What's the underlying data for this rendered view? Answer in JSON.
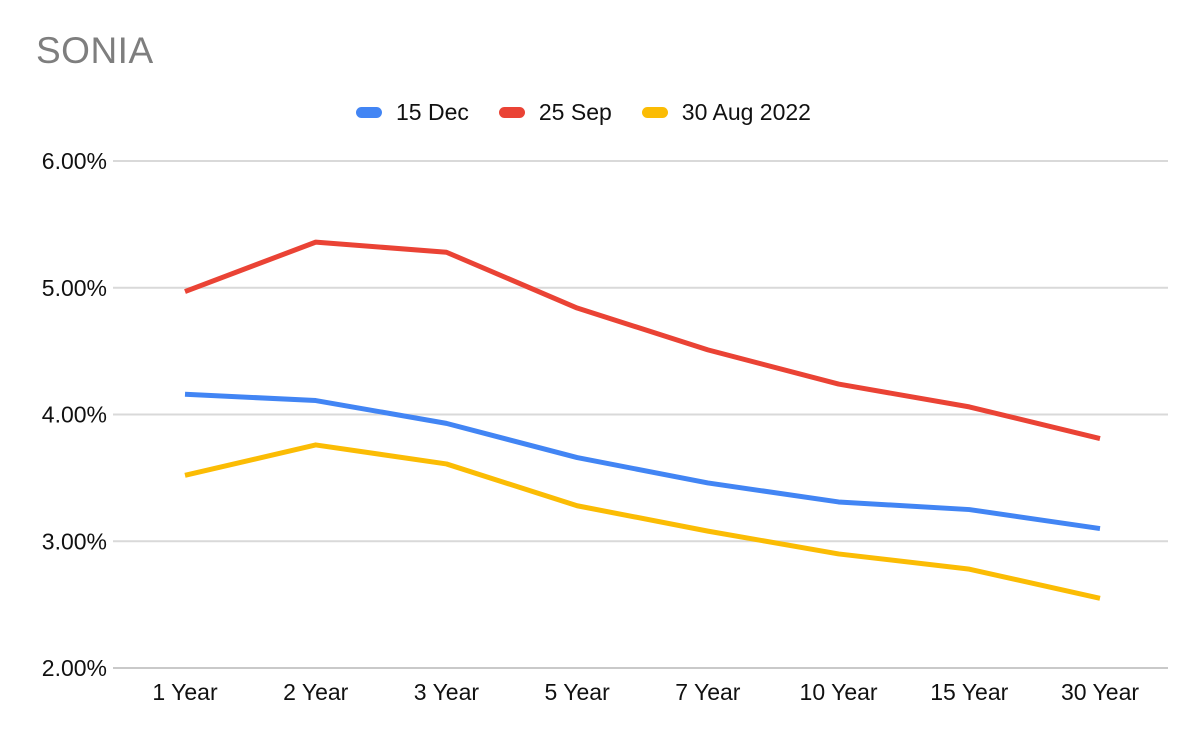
{
  "title": "SONIA",
  "colors": {
    "background": "#ffffff",
    "title_text": "#7e7e7e",
    "axis_text": "#111111",
    "gridline": "#d9d9d9",
    "baseline": "#c9c9c9",
    "series_blue": "#4285F4",
    "series_red": "#EA4335",
    "series_yellow": "#FBBC04"
  },
  "chart_data": {
    "type": "line",
    "title": "SONIA",
    "categories": [
      "1 Year",
      "2 Year",
      "3 Year",
      "5 Year",
      "7 Year",
      "10 Year",
      "15 Year",
      "30 Year"
    ],
    "series": [
      {
        "name": "15 Dec",
        "color": "#4285F4",
        "values": [
          4.16,
          4.11,
          3.93,
          3.66,
          3.46,
          3.31,
          3.25,
          3.1
        ]
      },
      {
        "name": "25 Sep",
        "color": "#EA4335",
        "values": [
          4.97,
          5.36,
          5.28,
          4.84,
          4.51,
          4.24,
          4.06,
          3.81
        ]
      },
      {
        "name": "30 Aug 2022",
        "color": "#FBBC04",
        "values": [
          3.52,
          3.76,
          3.61,
          3.28,
          3.08,
          2.9,
          2.78,
          2.55
        ]
      }
    ],
    "xlabel": "",
    "ylabel": "",
    "ylim": [
      2,
      6
    ],
    "yticks": [
      "6.00%",
      "5.00%",
      "4.00%",
      "3.00%",
      "2.00%"
    ],
    "ytick_values": [
      6,
      5,
      4,
      3,
      2
    ],
    "grid": true,
    "legend_position": "top"
  }
}
